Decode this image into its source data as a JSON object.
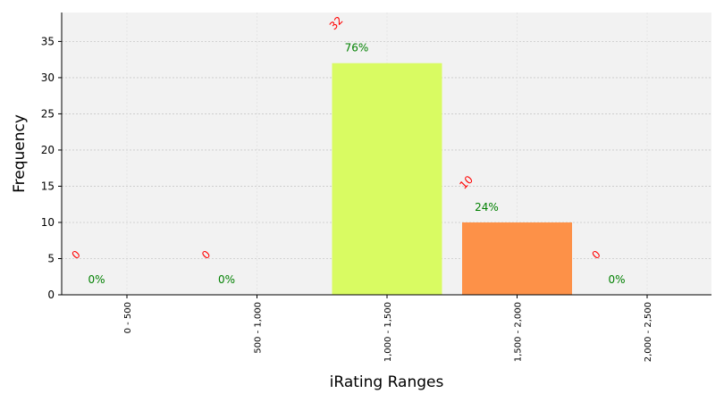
{
  "chart_data": {
    "type": "bar",
    "xlabel": "iRating Ranges",
    "ylabel": "Frequency",
    "categories": [
      "0 - 500",
      "500 - 1,000",
      "1,000 - 1,500",
      "1,500 - 2,000",
      "2,000 - 2,500"
    ],
    "values": [
      0,
      0,
      32,
      10,
      0
    ],
    "count_labels": [
      "0",
      "0",
      "32",
      "10",
      "0"
    ],
    "percent_labels": [
      "0%",
      "0%",
      "76%",
      "24%",
      "0%"
    ],
    "bar_colors": [
      "#d9fb62",
      "#d9fb62",
      "#d9fb62",
      "#fd9148",
      "#d9fb62"
    ],
    "ylim": [
      0,
      39
    ],
    "yticks": [
      0,
      5,
      10,
      15,
      20,
      25,
      30,
      35
    ],
    "grid": true,
    "background_color": "#f2f2f2",
    "count_label_color": "#ff0000",
    "percent_label_color": "#008000"
  }
}
